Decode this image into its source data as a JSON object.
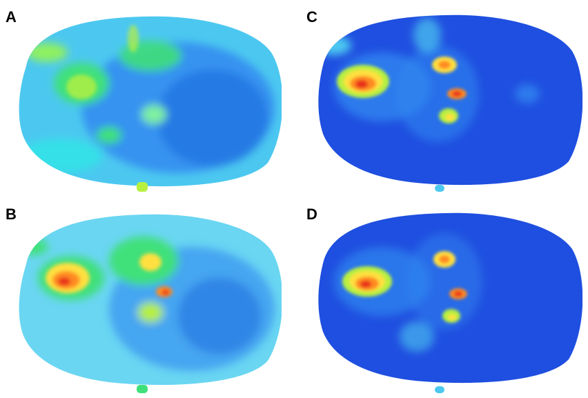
{
  "figure": {
    "panels": [
      {
        "label": "A",
        "palette": "mid",
        "colormap": "jet"
      },
      {
        "label": "B",
        "palette": "mid-hot",
        "colormap": "jet"
      },
      {
        "label": "C",
        "palette": "low-hot",
        "colormap": "jet"
      },
      {
        "label": "D",
        "palette": "low-hot",
        "colormap": "jet"
      }
    ],
    "colors": {
      "background": "#ffffff",
      "deep_blue": "#1f4fe0",
      "blue": "#2f86f0",
      "light_blue": "#4cc8f0",
      "cyan": "#35e0e8",
      "green": "#3fe07a",
      "yellow_green": "#b8f040",
      "yellow": "#ffe040",
      "orange": "#ff8a20",
      "red": "#e8301c"
    }
  }
}
